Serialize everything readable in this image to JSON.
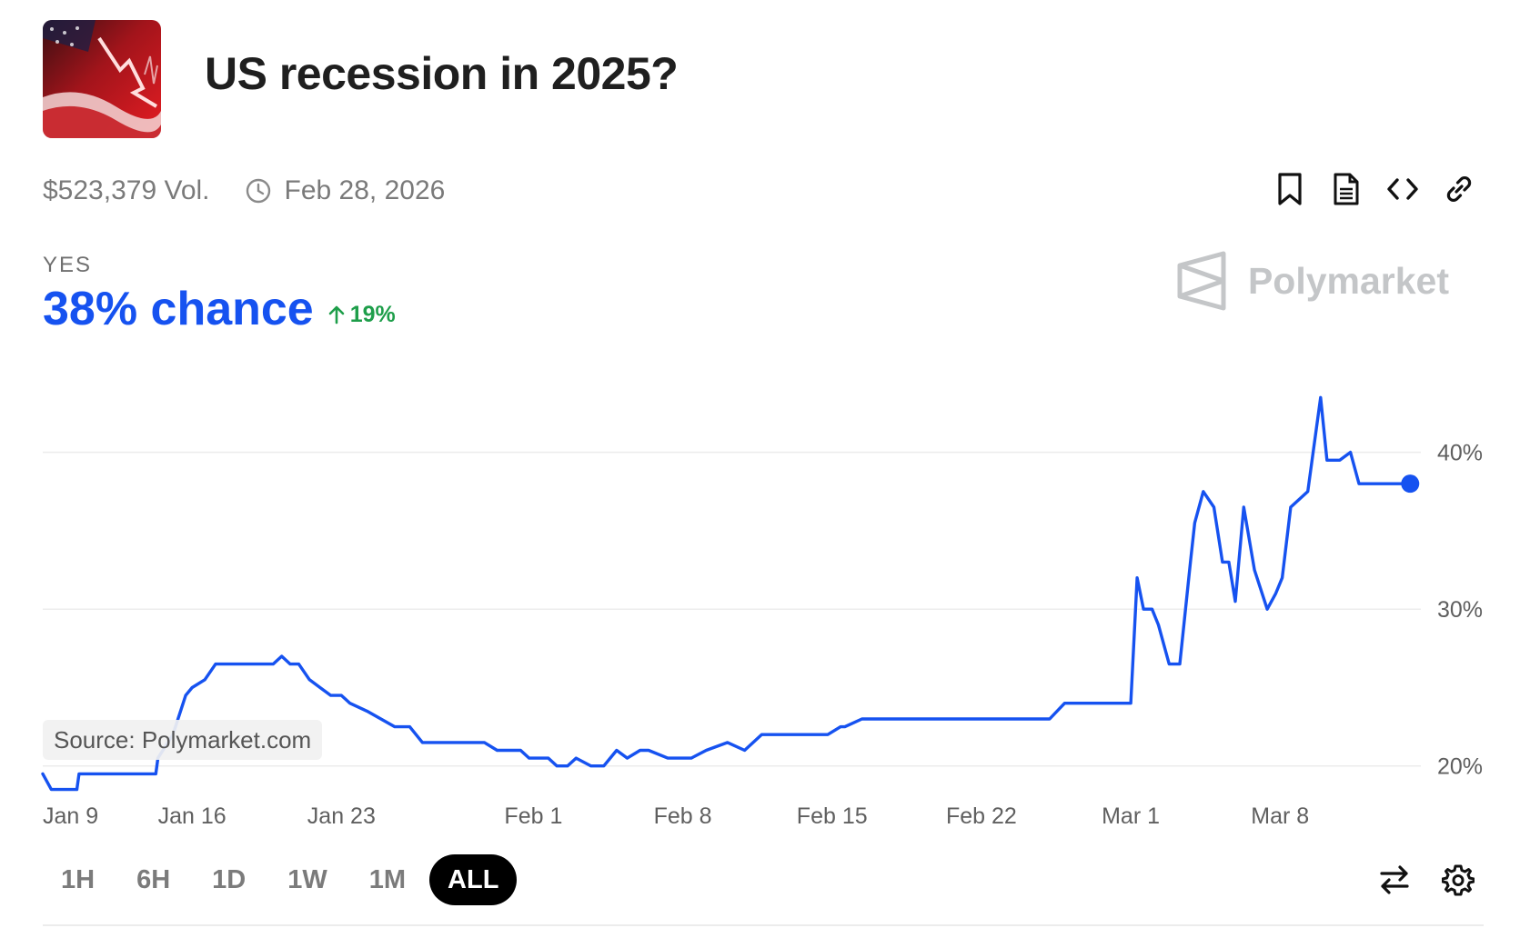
{
  "market": {
    "title": "US recession in 2025?",
    "volume": "$523,379 Vol.",
    "end_date": "Feb 28, 2026",
    "outcome_label": "YES",
    "chance_text": "38% chance",
    "change_text": "19%"
  },
  "brand": {
    "name": "Polymarket",
    "source": "Source: Polymarket.com"
  },
  "toolbar": [
    "bookmark-icon",
    "document-icon",
    "code-icon",
    "link-icon"
  ],
  "ranges": [
    {
      "label": "1H",
      "active": false
    },
    {
      "label": "6H",
      "active": false
    },
    {
      "label": "1D",
      "active": false
    },
    {
      "label": "1W",
      "active": false
    },
    {
      "label": "1M",
      "active": false
    },
    {
      "label": "ALL",
      "active": true
    }
  ],
  "colors": {
    "line": "#1652f0",
    "positive": "#1e9e4a",
    "grid": "#ececec",
    "active_pill": "#000000"
  },
  "chart_data": {
    "type": "line",
    "title": "",
    "xlabel": "",
    "ylabel": "",
    "x_tick_labels": [
      "Jan 9",
      "Jan 16",
      "Jan 23",
      "Feb 1",
      "Feb 8",
      "Feb 15",
      "Feb 22",
      "Mar 1",
      "Mar 8"
    ],
    "x_tick_days": [
      0,
      7,
      14,
      23,
      30,
      37,
      44,
      51,
      58
    ],
    "y_ticks": [
      20,
      30,
      40
    ],
    "y_tick_labels": [
      "20%",
      "30%",
      "40%"
    ],
    "xlim": [
      0,
      64.6
    ],
    "ylim": [
      19.0,
      44.5
    ],
    "grid": true,
    "series": [
      {
        "name": "",
        "x": [
          0,
          0.4,
          0.9,
          1.6,
          1.7,
          2.4,
          3.1,
          3.3,
          3.9,
          4.2,
          4.6,
          5.3,
          5.4,
          6.1,
          6.7,
          7.0,
          7.6,
          8.1,
          8.6,
          9.1,
          9.4,
          10.0,
          10.8,
          11.2,
          11.6,
          12.0,
          12.5,
          13.0,
          13.5,
          14.0,
          14.4,
          15.2,
          16.5,
          17.2,
          17.8,
          19.2,
          20.7,
          21.3,
          21.8,
          22.4,
          22.8,
          23.2,
          23.7,
          24.1,
          24.6,
          25.0,
          25.7,
          26.3,
          26.9,
          27.4,
          28.0,
          28.4,
          29.3,
          30.4,
          31.1,
          32.1,
          32.9,
          33.7,
          34.4,
          35.4,
          35.9,
          36.5,
          36.8,
          37.4,
          37.6,
          38.4,
          39.1,
          39.8,
          40.2,
          41.3,
          42.0,
          42.9,
          43.6,
          44.6,
          45.9,
          46.4,
          47.2,
          47.9,
          48.6,
          49.6,
          50.3,
          51.0,
          51.3,
          51.6,
          52.0,
          52.3,
          52.8,
          53.3,
          53.8,
          54.0,
          54.4,
          54.9,
          55.3,
          55.6,
          55.9,
          56.3,
          56.8,
          57.4,
          57.8,
          58.1,
          58.5,
          59.3,
          59.9,
          60.2,
          60.8,
          61.3,
          61.7,
          62.3,
          62.7,
          63.2,
          64.1
        ],
        "y": [
          19.5,
          18.5,
          18.5,
          18.5,
          19.5,
          19.5,
          19.5,
          19.5,
          19.5,
          19.5,
          19.5,
          19.5,
          20.5,
          22.0,
          24.5,
          25.0,
          25.5,
          26.5,
          26.5,
          26.5,
          26.5,
          26.5,
          26.5,
          27.0,
          26.5,
          26.5,
          25.5,
          25.0,
          24.5,
          24.5,
          24.0,
          23.5,
          22.5,
          22.5,
          21.5,
          21.5,
          21.5,
          21.0,
          21.0,
          21.0,
          20.5,
          20.5,
          20.5,
          20.0,
          20.0,
          20.5,
          20.0,
          20.0,
          21.0,
          20.5,
          21.0,
          21.0,
          20.5,
          20.5,
          21.0,
          21.5,
          21.0,
          22.0,
          22.0,
          22.0,
          22.0,
          22.0,
          22.0,
          22.5,
          22.5,
          23.0,
          23.0,
          23.0,
          23.0,
          23.0,
          23.0,
          23.0,
          23.0,
          23.0,
          23.0,
          23.0,
          23.0,
          24.0,
          24.0,
          24.0,
          24.0,
          24.0,
          32.0,
          30.0,
          30.0,
          29.0,
          26.5,
          26.5,
          33.0,
          35.5,
          37.5,
          36.5,
          33.0,
          33.0,
          30.5,
          36.5,
          32.5,
          30.0,
          31.0,
          32.0,
          36.5,
          37.5,
          43.5,
          39.5,
          39.5,
          40.0,
          38.0,
          38.0,
          38.0,
          38.0,
          38.0
        ]
      }
    ]
  }
}
